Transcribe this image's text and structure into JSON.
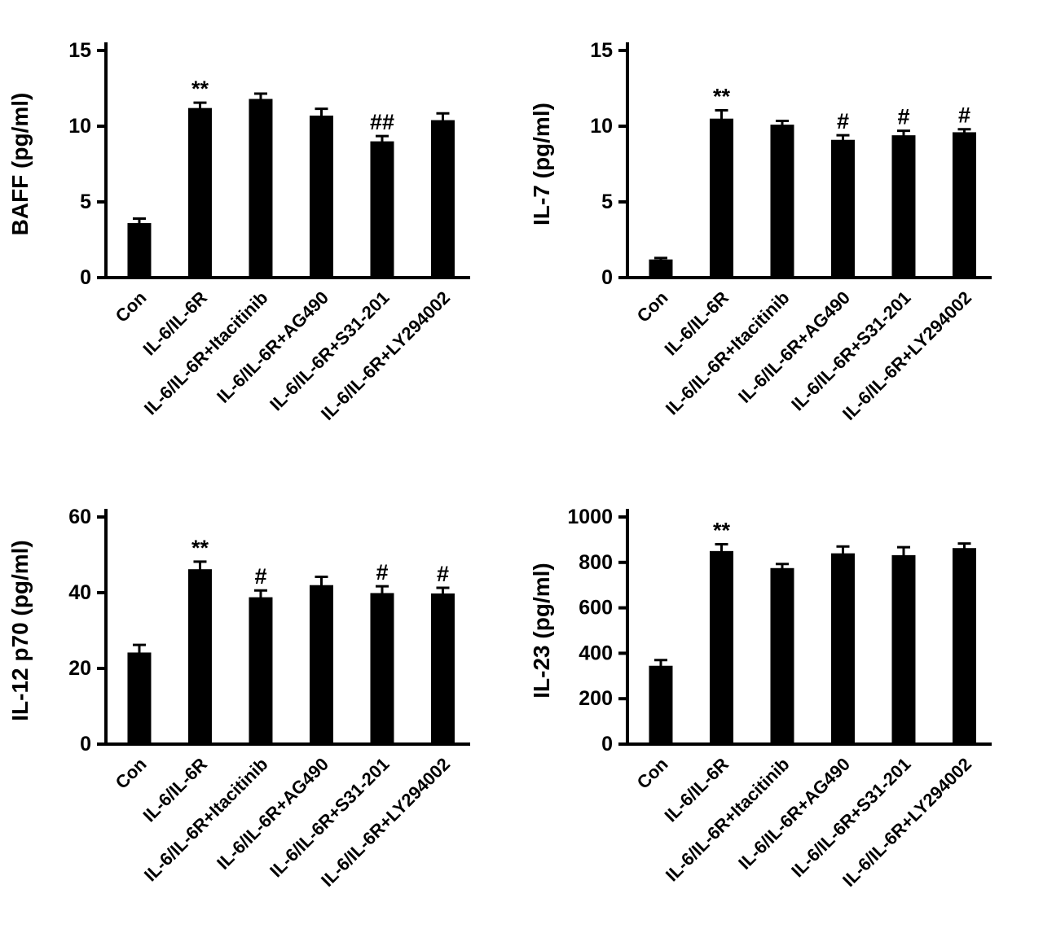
{
  "figure": {
    "background": "#ffffff",
    "bar_color": "#000000"
  },
  "chart_data": [
    {
      "type": "bar",
      "title": "",
      "xlabel": "",
      "ylabel": "BAFF (pg/ml)",
      "ylim": [
        0,
        15
      ],
      "yticks": [
        0,
        5,
        10,
        15
      ],
      "categories": [
        "Con",
        "IL-6/IL-6R",
        "IL-6/IL-6R+Itacitinib",
        "IL-6/IL-6R+AG490",
        "IL-6/IL-6R+S31-201",
        "IL-6/IL-6R+LY294002"
      ],
      "values": [
        3.6,
        11.2,
        11.8,
        10.7,
        9.0,
        10.4
      ],
      "errors": [
        0.3,
        0.35,
        0.35,
        0.45,
        0.35,
        0.45
      ],
      "annotations": [
        "",
        "**",
        "",
        "",
        "##",
        ""
      ],
      "legend": "none",
      "grid": false
    },
    {
      "type": "bar",
      "title": "",
      "xlabel": "",
      "ylabel": "IL-7 (pg/ml)",
      "ylim": [
        0,
        15
      ],
      "yticks": [
        0,
        5,
        10,
        15
      ],
      "categories": [
        "Con",
        "IL-6/IL-6R",
        "IL-6/IL-6R+Itacitinib",
        "IL-6/IL-6R+AG490",
        "IL-6/IL-6R+S31-201",
        "IL-6/IL-6R+LY294002"
      ],
      "values": [
        1.2,
        10.5,
        10.1,
        9.1,
        9.4,
        9.6
      ],
      "errors": [
        0.1,
        0.55,
        0.25,
        0.3,
        0.3,
        0.2
      ],
      "annotations": [
        "",
        "**",
        "",
        "#",
        "#",
        "#"
      ],
      "legend": "none",
      "grid": false
    },
    {
      "type": "bar",
      "title": "",
      "xlabel": "",
      "ylabel": "IL-12 p70 (pg/ml)",
      "ylim": [
        0,
        60
      ],
      "yticks": [
        0,
        20,
        40,
        60
      ],
      "categories": [
        "Con",
        "IL-6/IL-6R",
        "IL-6/IL-6R+Itacitinib",
        "IL-6/IL-6R+AG490",
        "IL-6/IL-6R+S31-201",
        "IL-6/IL-6R+LY294002"
      ],
      "values": [
        24.2,
        46.2,
        38.8,
        42.0,
        39.9,
        39.8
      ],
      "errors": [
        2.0,
        2.0,
        1.8,
        2.2,
        1.8,
        1.5
      ],
      "annotations": [
        "",
        "**",
        "#",
        "",
        "#",
        "#"
      ],
      "legend": "none",
      "grid": false
    },
    {
      "type": "bar",
      "title": "",
      "xlabel": "",
      "ylabel": "IL-23 (pg/ml)",
      "ylim": [
        0,
        1000
      ],
      "yticks": [
        0,
        200,
        400,
        600,
        800,
        1000
      ],
      "categories": [
        "Con",
        "IL-6/IL-6R",
        "IL-6/IL-6R+Itacitinib",
        "IL-6/IL-6R+AG490",
        "IL-6/IL-6R+S31-201",
        "IL-6/IL-6R+LY294002"
      ],
      "values": [
        345,
        850,
        775,
        840,
        832,
        863
      ],
      "errors": [
        25,
        30,
        18,
        30,
        35,
        20
      ],
      "annotations": [
        "",
        "**",
        "",
        "",
        "",
        ""
      ],
      "legend": "none",
      "grid": false
    }
  ]
}
